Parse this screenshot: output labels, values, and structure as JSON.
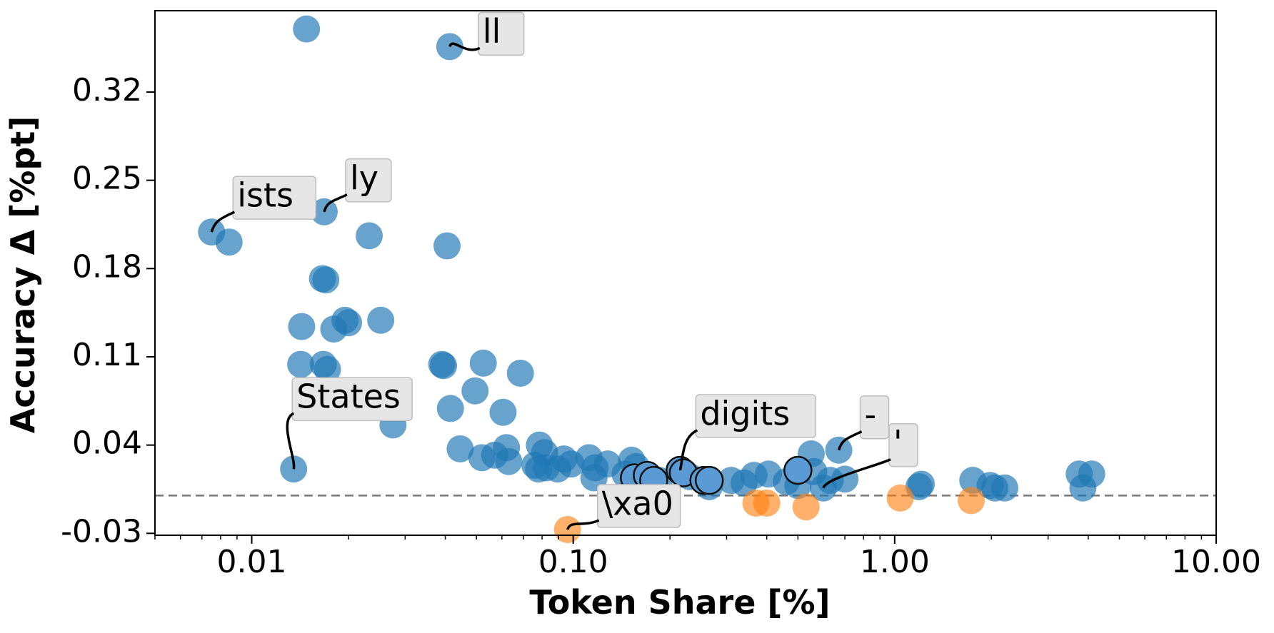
{
  "chart_data": {
    "type": "scatter",
    "title": "",
    "xlabel": "Token Share [%]",
    "ylabel": "Accuracy Δ [%pt]",
    "x_scale": "log",
    "xlim": [
      0.005,
      10
    ],
    "ylim": [
      -0.0315,
      0.3845
    ],
    "x_ticks": [
      0.01,
      0.1,
      1.0,
      10.0
    ],
    "x_tick_labels": [
      "0.01",
      "0.10",
      "1.00",
      "10.00"
    ],
    "y_ticks": [
      -0.03,
      0.04,
      0.11,
      0.18,
      0.25,
      0.32
    ],
    "y_tick_labels": [
      "-0.03",
      "0.04",
      "0.11",
      "0.18",
      "0.25",
      "0.32"
    ],
    "reference_line": {
      "y": 0,
      "style": "dashed",
      "color": "#777777"
    },
    "colors": {
      "positive": "#1f77b4",
      "negative": "#ff7f0e",
      "highlight": "#5b9bd5"
    },
    "series": [
      {
        "group": "positive",
        "color": "#1f77b4",
        "points": [
          {
            "x": 0.0148,
            "y": 0.37
          },
          {
            "x": 0.0413,
            "y": 0.356
          },
          {
            "x": 0.0075,
            "y": 0.209
          },
          {
            "x": 0.0085,
            "y": 0.201
          },
          {
            "x": 0.0168,
            "y": 0.225
          },
          {
            "x": 0.0232,
            "y": 0.206
          },
          {
            "x": 0.0405,
            "y": 0.198
          },
          {
            "x": 0.0166,
            "y": 0.172
          },
          {
            "x": 0.017,
            "y": 0.171
          },
          {
            "x": 0.0195,
            "y": 0.139
          },
          {
            "x": 0.02,
            "y": 0.137
          },
          {
            "x": 0.018,
            "y": 0.132
          },
          {
            "x": 0.0143,
            "y": 0.134
          },
          {
            "x": 0.0252,
            "y": 0.139
          },
          {
            "x": 0.0142,
            "y": 0.104
          },
          {
            "x": 0.0167,
            "y": 0.104
          },
          {
            "x": 0.0172,
            "y": 0.1
          },
          {
            "x": 0.039,
            "y": 0.104
          },
          {
            "x": 0.0395,
            "y": 0.103
          },
          {
            "x": 0.0525,
            "y": 0.105
          },
          {
            "x": 0.0685,
            "y": 0.097
          },
          {
            "x": 0.0495,
            "y": 0.083
          },
          {
            "x": 0.0415,
            "y": 0.069
          },
          {
            "x": 0.0605,
            "y": 0.066
          },
          {
            "x": 0.0275,
            "y": 0.056
          },
          {
            "x": 0.0135,
            "y": 0.021
          },
          {
            "x": 0.0445,
            "y": 0.037
          },
          {
            "x": 0.052,
            "y": 0.03
          },
          {
            "x": 0.057,
            "y": 0.032
          },
          {
            "x": 0.062,
            "y": 0.038
          },
          {
            "x": 0.063,
            "y": 0.027
          },
          {
            "x": 0.0785,
            "y": 0.04
          },
          {
            "x": 0.0815,
            "y": 0.034
          },
          {
            "x": 0.076,
            "y": 0.024
          },
          {
            "x": 0.078,
            "y": 0.021
          },
          {
            "x": 0.0825,
            "y": 0.022
          },
          {
            "x": 0.0895,
            "y": 0.021
          },
          {
            "x": 0.0935,
            "y": 0.029
          },
          {
            "x": 0.0985,
            "y": 0.025
          },
          {
            "x": 0.112,
            "y": 0.03
          },
          {
            "x": 0.117,
            "y": 0.022
          },
          {
            "x": 0.116,
            "y": 0.014
          },
          {
            "x": 0.128,
            "y": 0.025
          },
          {
            "x": 0.145,
            "y": 0.017
          },
          {
            "x": 0.152,
            "y": 0.028
          },
          {
            "x": 0.157,
            "y": 0.023
          },
          {
            "x": 0.185,
            "y": 0.012
          },
          {
            "x": 0.23,
            "y": 0.015
          },
          {
            "x": 0.265,
            "y": 0.007
          },
          {
            "x": 0.31,
            "y": 0.012
          },
          {
            "x": 0.34,
            "y": 0.01
          },
          {
            "x": 0.365,
            "y": 0.016
          },
          {
            "x": 0.405,
            "y": 0.017
          },
          {
            "x": 0.46,
            "y": 0.011
          },
          {
            "x": 0.5,
            "y": 0.008
          },
          {
            "x": 0.55,
            "y": 0.033
          },
          {
            "x": 0.56,
            "y": 0.019
          },
          {
            "x": 0.6,
            "y": 0.006
          },
          {
            "x": 0.63,
            "y": 0.012
          },
          {
            "x": 0.67,
            "y": 0.036
          },
          {
            "x": 0.7,
            "y": 0.013
          },
          {
            "x": 1.21,
            "y": 0.009
          },
          {
            "x": 1.19,
            "y": 0.007
          },
          {
            "x": 1.75,
            "y": 0.012
          },
          {
            "x": 1.98,
            "y": 0.008
          },
          {
            "x": 2.05,
            "y": 0.006
          },
          {
            "x": 2.2,
            "y": 0.006
          },
          {
            "x": 3.75,
            "y": 0.017
          },
          {
            "x": 4.1,
            "y": 0.017
          },
          {
            "x": 3.85,
            "y": 0.006
          }
        ]
      },
      {
        "group": "negative",
        "color": "#ff7f0e",
        "points": [
          {
            "x": 0.096,
            "y": -0.027
          },
          {
            "x": 0.37,
            "y": -0.006
          },
          {
            "x": 0.4,
            "y": -0.006
          },
          {
            "x": 0.53,
            "y": -0.009
          },
          {
            "x": 1.04,
            "y": -0.002
          },
          {
            "x": 1.73,
            "y": -0.004
          }
        ]
      },
      {
        "group": "highlight",
        "color": "#5b9bd5",
        "points": [
          {
            "x": 0.155,
            "y": 0.014
          },
          {
            "x": 0.17,
            "y": 0.016
          },
          {
            "x": 0.178,
            "y": 0.012
          },
          {
            "x": 0.215,
            "y": 0.02
          },
          {
            "x": 0.22,
            "y": 0.018
          },
          {
            "x": 0.255,
            "y": 0.012
          },
          {
            "x": 0.265,
            "y": 0.012
          },
          {
            "x": 0.5,
            "y": 0.02
          }
        ]
      }
    ],
    "annotations": [
      {
        "text": "ll",
        "x": 0.0413,
        "y": 0.356
      },
      {
        "text": "ists",
        "x": 0.0075,
        "y": 0.209
      },
      {
        "text": "ly",
        "x": 0.0168,
        "y": 0.225
      },
      {
        "text": "States",
        "x": 0.0135,
        "y": 0.021
      },
      {
        "text": "digits",
        "x": 0.215,
        "y": 0.02
      },
      {
        "text": "-",
        "x": 0.67,
        "y": 0.036
      },
      {
        "text": "'",
        "x": 0.6,
        "y": 0.006
      },
      {
        "text": "\\xa0",
        "x": 0.096,
        "y": -0.027
      }
    ]
  }
}
